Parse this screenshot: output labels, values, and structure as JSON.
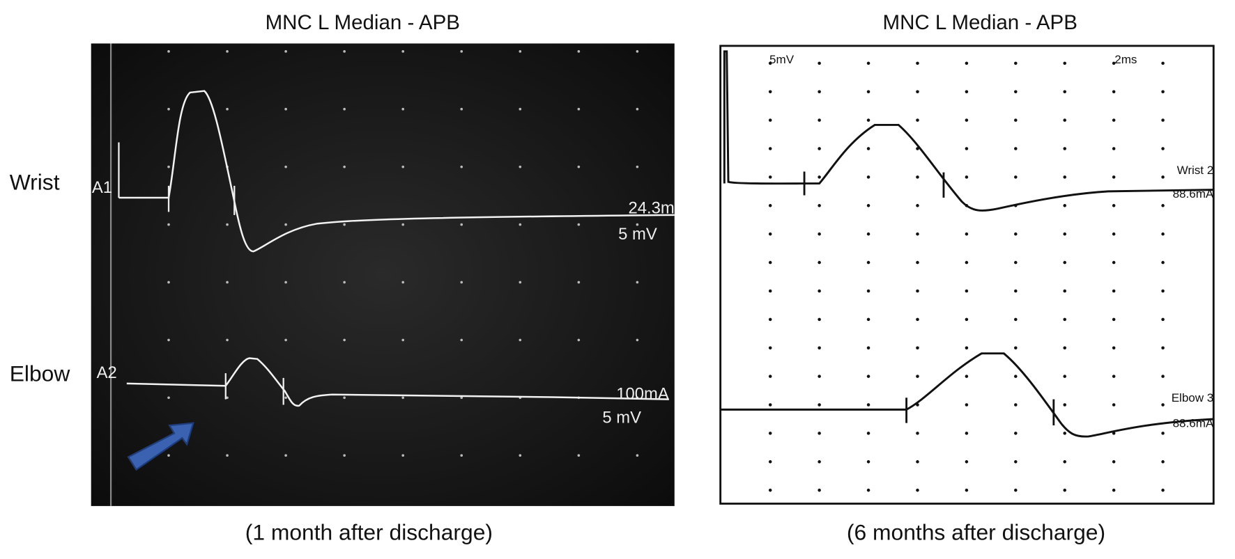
{
  "left_panel": {
    "title": "MNC L Median - APB",
    "row_labels": [
      "Wrist",
      "Elbow"
    ],
    "traces": [
      {
        "label": "A1",
        "stimulus": "24.3m",
        "gain": "5 mV"
      },
      {
        "label": "A2",
        "stimulus": "100mA",
        "gain": "5 mV"
      }
    ],
    "caption": "(1 month after discharge)"
  },
  "right_panel": {
    "title": "MNC L Median - APB",
    "gain": "5mV",
    "sweep": "2ms",
    "traces": [
      {
        "label": "Wrist 2",
        "stimulus": "88.6mA"
      },
      {
        "label": "Elbow 3",
        "stimulus": "88.6mA"
      }
    ],
    "caption": "(6 months after discharge)"
  }
}
